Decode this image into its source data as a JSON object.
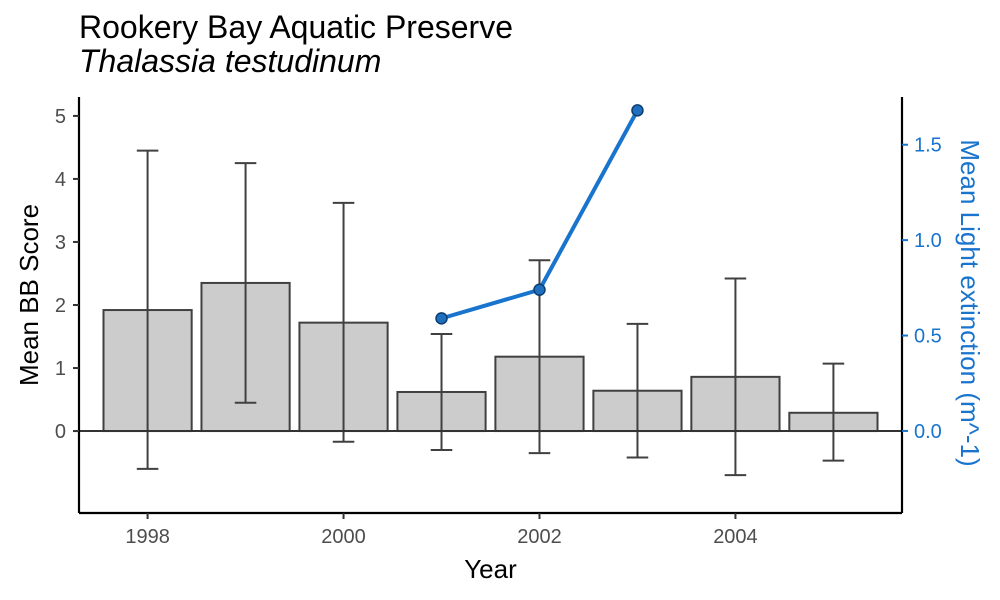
{
  "chart_data": {
    "type": "bar",
    "title": "Rookery Bay Aquatic Preserve",
    "subtitle": "Thalassia testudinum",
    "xlabel": "Year",
    "ylabel": "Mean BB Score",
    "y2label": "Mean Light extinction (m^-1)",
    "xlim": [
      1997.3,
      2005.7
    ],
    "ylim": [
      -1.3,
      5.3
    ],
    "y2lim": [
      -0.43,
      1.75
    ],
    "x_ticks": [
      "1998",
      "2000",
      "2002",
      "2004"
    ],
    "y_ticks": [
      "0",
      "1",
      "2",
      "3",
      "4",
      "5"
    ],
    "y2_ticks": [
      "0.0",
      "0.5",
      "1.0",
      "1.5"
    ],
    "grid": false,
    "bars": {
      "name": "Mean BB Score",
      "x": [
        1998,
        1999,
        2000,
        2001,
        2002,
        2003,
        2004,
        2005
      ],
      "values": [
        1.92,
        2.35,
        1.72,
        0.62,
        1.18,
        0.64,
        0.86,
        0.29
      ],
      "error_low": [
        -0.6,
        0.45,
        -0.17,
        -0.3,
        -0.35,
        -0.42,
        -0.7,
        -0.47
      ],
      "error_high": [
        4.45,
        4.25,
        3.62,
        1.54,
        2.71,
        1.7,
        2.42,
        1.07
      ],
      "fill": "#cccccc",
      "stroke": "#404040"
    },
    "line": {
      "name": "Mean Light extinction",
      "x": [
        2001,
        2002,
        2003
      ],
      "values": [
        0.59,
        0.74,
        1.68
      ],
      "color": "#1874cd",
      "marker_fill": "#1f6fc0",
      "marker_stroke": "#0d3d6e"
    },
    "axis_color": "#000000",
    "tick_label_color": "#4d4d4d",
    "y2_color": "#1874cd"
  }
}
